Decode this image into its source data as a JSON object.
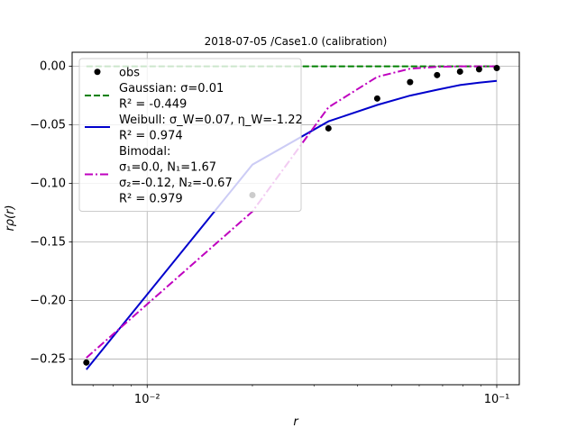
{
  "chart_data": {
    "type": "line",
    "title": "2018-07-05 /Case1.0 (calibration)",
    "xlabel": "r",
    "ylabel": "rρ(r)",
    "xscale": "log",
    "xlim": [
      0.0061,
      0.116
    ],
    "ylim": [
      -0.272,
      0.012
    ],
    "grid": true,
    "legend_position": "top-left",
    "xticks": [
      {
        "value": 0.01,
        "label": "10⁻²"
      },
      {
        "value": 0.1,
        "label": "10⁻¹"
      }
    ],
    "yticks": [
      {
        "value": 0.0,
        "label": "0.00"
      },
      {
        "value": -0.05,
        "label": "−0.05"
      },
      {
        "value": -0.1,
        "label": "−0.10"
      },
      {
        "value": -0.15,
        "label": "−0.15"
      },
      {
        "value": -0.2,
        "label": "−0.20"
      },
      {
        "value": -0.25,
        "label": "−0.25"
      }
    ],
    "series": [
      {
        "key": "obs",
        "kind": "scatter",
        "color": "#000000",
        "legend_lines": [
          "obs"
        ],
        "x": [
          0.0067,
          0.02,
          0.033,
          0.0455,
          0.0565,
          0.0675,
          0.0785,
          0.089,
          0.1
        ],
        "y": [
          -0.253,
          -0.11,
          -0.053,
          -0.0275,
          -0.0135,
          -0.0075,
          -0.0045,
          -0.0025,
          -0.0015
        ]
      },
      {
        "key": "gaussian",
        "kind": "line",
        "dash": "dashed",
        "color": "#008000",
        "legend_lines": [
          "Gaussian: σ=0.01",
          "R² = -0.449"
        ],
        "x": [
          0.0067,
          0.02,
          0.033,
          0.0455,
          0.0565,
          0.0675,
          0.0785,
          0.089,
          0.1
        ],
        "y": [
          0.0,
          0.0,
          0.0,
          0.0,
          0.0,
          0.0,
          0.0,
          0.0,
          0.0
        ]
      },
      {
        "key": "weibull",
        "kind": "line",
        "dash": "solid",
        "color": "#0000cc",
        "legend_lines": [
          "Weibull: σ_W=0.07, η_W=-1.22",
          "R² = 0.974"
        ],
        "x": [
          0.0067,
          0.02,
          0.033,
          0.0455,
          0.0565,
          0.0675,
          0.0785,
          0.089,
          0.1
        ],
        "y": [
          -0.259,
          -0.084,
          -0.047,
          -0.033,
          -0.025,
          -0.02,
          -0.016,
          -0.014,
          -0.0125
        ]
      },
      {
        "key": "bimodal",
        "kind": "line",
        "dash": "dashdot",
        "color": "#bf00bf",
        "legend_lines": [
          "Bimodal:",
          "σ₁=0.0, N₁=1.67",
          "σ₂=-0.12, N₂=-0.67",
          "R² = 0.979"
        ],
        "x": [
          0.0067,
          0.02,
          0.033,
          0.0455,
          0.0565,
          0.0675,
          0.0785,
          0.089,
          0.1
        ],
        "y": [
          -0.249,
          -0.124,
          -0.035,
          -0.009,
          -0.002,
          -0.0005,
          0.0,
          0.0,
          0.0
        ]
      }
    ]
  }
}
